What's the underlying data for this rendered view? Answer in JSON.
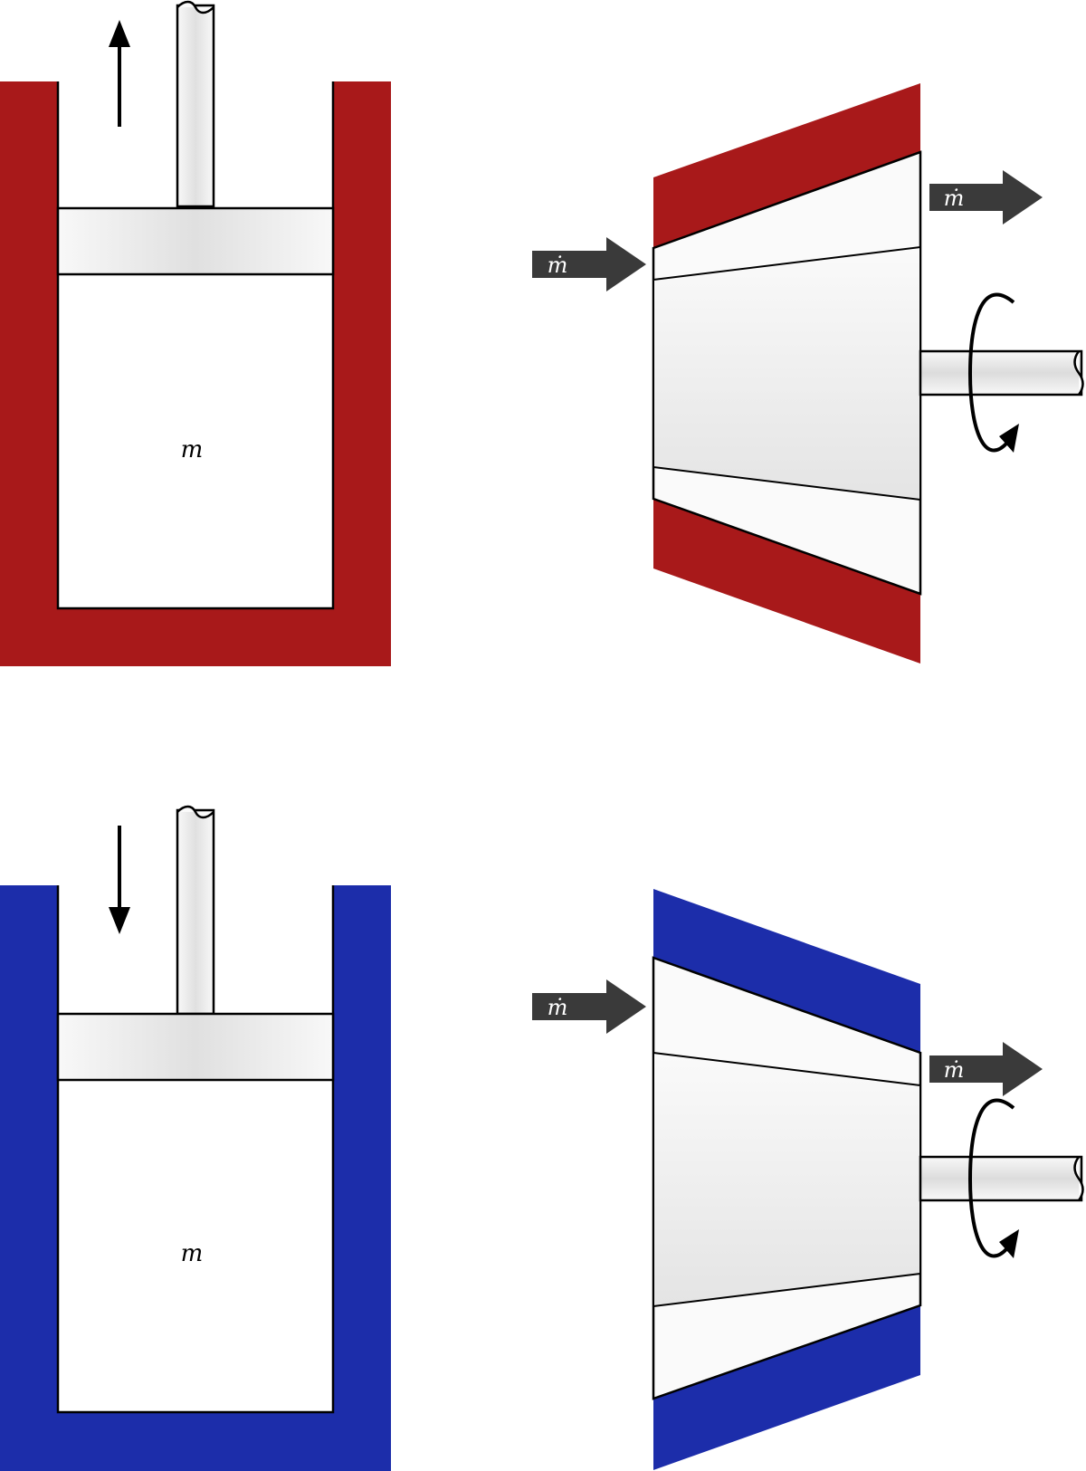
{
  "colors": {
    "hot": "#A8191A",
    "cold": "#1C2DAA",
    "arrow": "#3A3A3A",
    "outline": "#000000",
    "metal_light": "#FAFAFA",
    "metal_dark": "#E2E2E2"
  },
  "labels": {
    "top_mass": "m",
    "bottom_mass": "m",
    "top_inlet": "ṁ",
    "top_outlet": "ṁ",
    "bottom_inlet": "ṁ",
    "bottom_outlet": "ṁ"
  },
  "icons": {
    "piston_motion_up": "arrow-up-icon",
    "piston_motion_down": "arrow-down-icon",
    "shaft_rotation": "rotation-arrow-icon"
  }
}
